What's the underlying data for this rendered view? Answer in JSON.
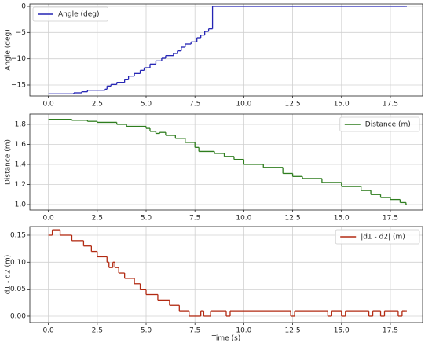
{
  "chart_data": [
    {
      "type": "line",
      "step": "post",
      "legend": "upper left",
      "grid": true,
      "y_label": "Angle (deg)",
      "xlim": [
        -0.95,
        19.15
      ],
      "ylim": [
        -17.1,
        0.45
      ],
      "xticks": [
        {
          "value": 0,
          "label": "0.0"
        },
        {
          "value": 2.5,
          "label": "2.5"
        },
        {
          "value": 5,
          "label": "5.0"
        },
        {
          "value": 7.5,
          "label": "7.5"
        },
        {
          "value": 10,
          "label": "10.0"
        },
        {
          "value": 12.5,
          "label": "12.5"
        },
        {
          "value": 15,
          "label": "15.0"
        },
        {
          "value": 17.5,
          "label": "17.5"
        }
      ],
      "yticks": [
        0,
        {
          "value": -5,
          "label": "−5"
        },
        {
          "value": -10,
          "label": "−10"
        },
        {
          "value": -15,
          "label": "−15"
        }
      ],
      "series": [
        {
          "name": "Angle (deg)",
          "color": "#2424b4",
          "x": [
            0,
            1.3,
            1.7,
            2.0,
            2.9,
            3.0,
            3.2,
            3.5,
            3.9,
            4.1,
            4.4,
            4.7,
            4.9,
            5.2,
            5.5,
            5.8,
            6.0,
            6.4,
            6.6,
            6.8,
            7.0,
            7.3,
            7.6,
            7.8,
            8.0,
            8.2,
            8.4,
            18.3
          ],
          "values": [
            -16.7,
            -16.5,
            -16.3,
            -16.0,
            -15.8,
            -15.2,
            -14.9,
            -14.5,
            -14.0,
            -13.3,
            -12.8,
            -12.2,
            -11.7,
            -11.0,
            -10.4,
            -9.9,
            -9.4,
            -9.0,
            -8.5,
            -7.8,
            -7.2,
            -6.8,
            -6.0,
            -5.5,
            -4.8,
            -4.3,
            0,
            0
          ]
        }
      ]
    },
    {
      "type": "line",
      "step": "post",
      "legend": "upper right",
      "grid": true,
      "y_label": "Distance (m)",
      "xlim": [
        -0.95,
        19.15
      ],
      "ylim": [
        0.945,
        1.902
      ],
      "xticks": [
        {
          "value": 0,
          "label": "0.0"
        },
        {
          "value": 2.5,
          "label": "2.5"
        },
        {
          "value": 5,
          "label": "5.0"
        },
        {
          "value": 7.5,
          "label": "7.5"
        },
        {
          "value": 10,
          "label": "10.0"
        },
        {
          "value": 12.5,
          "label": "12.5"
        },
        {
          "value": 15,
          "label": "15.0"
        },
        {
          "value": 17.5,
          "label": "17.5"
        }
      ],
      "yticks": [
        {
          "value": 1.0,
          "label": "1.0"
        },
        {
          "value": 1.2,
          "label": "1.2"
        },
        {
          "value": 1.4,
          "label": "1.4"
        },
        {
          "value": 1.6,
          "label": "1.6"
        },
        {
          "value": 1.8,
          "label": "1.8"
        }
      ],
      "series": [
        {
          "name": "Distance (m)",
          "color": "#2e7d1e",
          "x": [
            0,
            1.2,
            2.0,
            2.5,
            3.5,
            4.0,
            5.0,
            5.2,
            5.5,
            5.7,
            6.0,
            6.5,
            7.0,
            7.5,
            7.7,
            8.5,
            9.0,
            9.5,
            10.0,
            11.0,
            12.0,
            12.5,
            13.0,
            14.0,
            15.0,
            16.0,
            16.5,
            17.0,
            17.5,
            18.0,
            18.3
          ],
          "values": [
            1.85,
            1.84,
            1.83,
            1.82,
            1.8,
            1.78,
            1.76,
            1.73,
            1.71,
            1.72,
            1.69,
            1.66,
            1.62,
            1.57,
            1.53,
            1.51,
            1.48,
            1.45,
            1.4,
            1.37,
            1.31,
            1.28,
            1.26,
            1.22,
            1.18,
            1.14,
            1.1,
            1.07,
            1.05,
            1.02,
            1.0
          ]
        }
      ]
    },
    {
      "type": "line",
      "step": "post",
      "legend": "upper right",
      "grid": true,
      "y_label": "d1 - d2 (m)",
      "x_label": "Time (s)",
      "xlim": [
        -0.95,
        19.15
      ],
      "ylim": [
        -0.0117,
        0.166
      ],
      "xticks": [
        {
          "value": 0,
          "label": "0.0"
        },
        {
          "value": 2.5,
          "label": "2.5"
        },
        {
          "value": 5,
          "label": "5.0"
        },
        {
          "value": 7.5,
          "label": "7.5"
        },
        {
          "value": 10,
          "label": "10.0"
        },
        {
          "value": 12.5,
          "label": "12.5"
        },
        {
          "value": 15,
          "label": "15.0"
        },
        {
          "value": 17.5,
          "label": "17.5"
        }
      ],
      "yticks": [
        {
          "value": 0,
          "label": "0.00"
        },
        {
          "value": 0.05,
          "label": "0.05"
        },
        {
          "value": 0.1,
          "label": "0.10"
        },
        {
          "value": 0.15,
          "label": "0.15"
        }
      ],
      "series": [
        {
          "name": "|d1 - d2| (m)",
          "color": "#b22a12",
          "x": [
            0,
            0.2,
            0.6,
            1.2,
            1.8,
            2.2,
            2.5,
            3.0,
            3.1,
            3.3,
            3.4,
            3.6,
            3.9,
            4.4,
            4.7,
            5.0,
            5.6,
            6.2,
            6.7,
            7.2,
            7.8,
            7.95,
            8.3,
            9.1,
            9.3,
            12.4,
            12.6,
            14.3,
            14.5,
            15.0,
            15.2,
            16.4,
            16.6,
            17.0,
            17.2,
            17.9,
            18.1,
            18.3
          ],
          "values": [
            0.15,
            0.16,
            0.15,
            0.14,
            0.13,
            0.12,
            0.11,
            0.1,
            0.09,
            0.1,
            0.09,
            0.08,
            0.07,
            0.06,
            0.05,
            0.04,
            0.03,
            0.02,
            0.01,
            0.0,
            0.01,
            0.0,
            0.01,
            0.0,
            0.01,
            0.0,
            0.01,
            0.0,
            0.01,
            0.0,
            0.01,
            0.0,
            0.01,
            0.0,
            0.01,
            0.0,
            0.01,
            0.01
          ]
        }
      ]
    }
  ]
}
